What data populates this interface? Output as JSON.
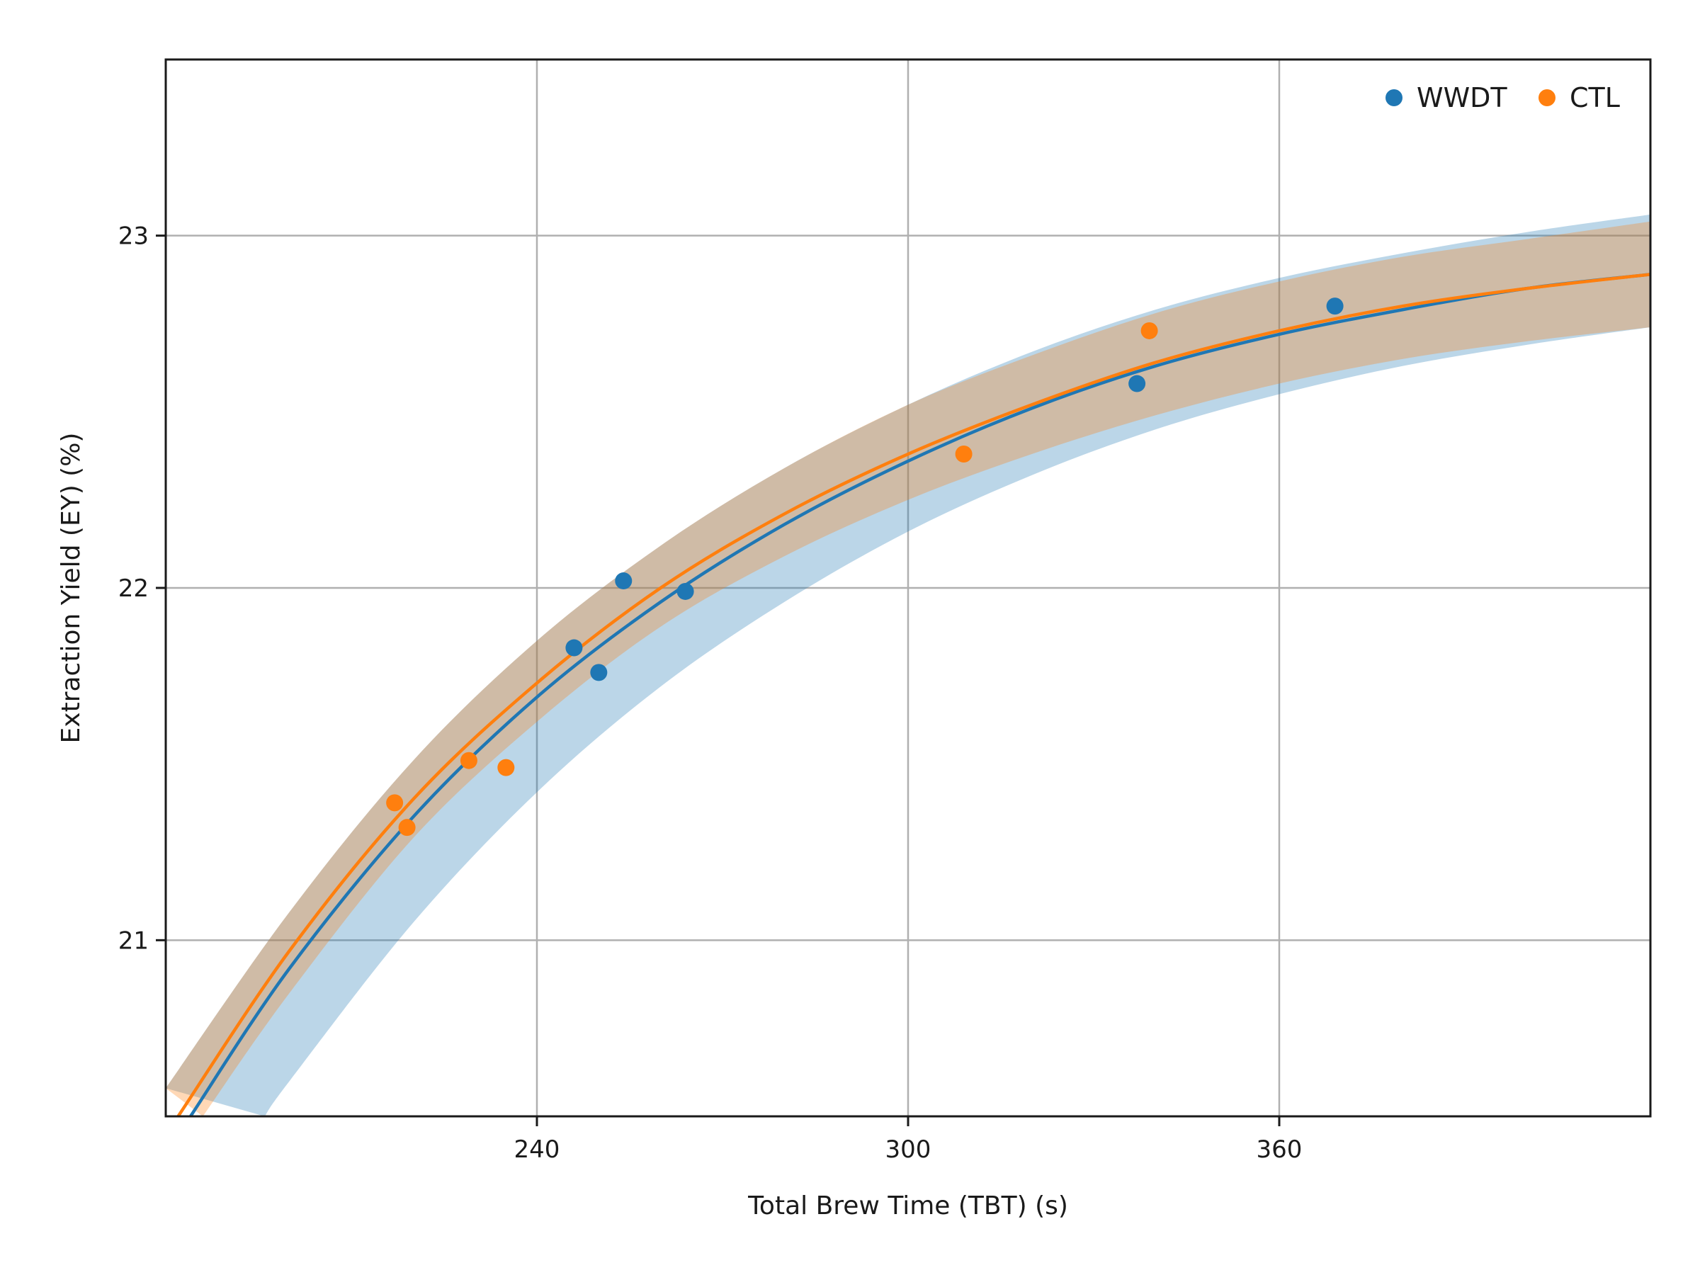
{
  "chart_data": {
    "type": "scatter",
    "title": "",
    "xlabel": "Total Brew Time (TBT) (s)",
    "ylabel": "Extraction Yield (EY) (%)",
    "xlim": [
      180,
      420
    ],
    "ylim": [
      20.5,
      23.5
    ],
    "xticks": [
      240,
      300,
      360
    ],
    "yticks": [
      21,
      22,
      23
    ],
    "grid": true,
    "legend_position": "top-right",
    "series": [
      {
        "name": "WWDT",
        "color": "#1f77b4",
        "points": [
          [
            246,
            21.83
          ],
          [
            250,
            21.76
          ],
          [
            254,
            22.02
          ],
          [
            264,
            21.99
          ],
          [
            337,
            22.58
          ],
          [
            369,
            22.8
          ]
        ],
        "fit_curve": [
          [
            184,
            20.5
          ],
          [
            200,
            20.92
          ],
          [
            220,
            21.35
          ],
          [
            240,
            21.69
          ],
          [
            260,
            21.96
          ],
          [
            280,
            22.18
          ],
          [
            300,
            22.36
          ],
          [
            320,
            22.51
          ],
          [
            340,
            22.63
          ],
          [
            360,
            22.72
          ],
          [
            380,
            22.79
          ],
          [
            400,
            22.85
          ],
          [
            420,
            22.89
          ]
        ],
        "band_upper": [
          [
            180,
            20.58
          ],
          [
            200,
            21.08
          ],
          [
            220,
            21.51
          ],
          [
            240,
            21.85
          ],
          [
            260,
            22.12
          ],
          [
            280,
            22.34
          ],
          [
            300,
            22.52
          ],
          [
            320,
            22.67
          ],
          [
            340,
            22.79
          ],
          [
            360,
            22.88
          ],
          [
            380,
            22.95
          ],
          [
            400,
            23.01
          ],
          [
            420,
            23.06
          ]
        ],
        "band_lower": [
          [
            196,
            20.5
          ],
          [
            200,
            20.6
          ],
          [
            220,
            21.05
          ],
          [
            240,
            21.42
          ],
          [
            260,
            21.72
          ],
          [
            280,
            21.96
          ],
          [
            300,
            22.16
          ],
          [
            320,
            22.32
          ],
          [
            340,
            22.45
          ],
          [
            360,
            22.55
          ],
          [
            380,
            22.63
          ],
          [
            400,
            22.69
          ],
          [
            420,
            22.74
          ]
        ]
      },
      {
        "name": "CTL",
        "color": "#ff7f0e",
        "points": [
          [
            217,
            21.39
          ],
          [
            219,
            21.32
          ],
          [
            229,
            21.51
          ],
          [
            235,
            21.49
          ],
          [
            309,
            22.38
          ],
          [
            339,
            22.73
          ]
        ],
        "fit_curve": [
          [
            182,
            20.5
          ],
          [
            200,
            20.97
          ],
          [
            220,
            21.4
          ],
          [
            240,
            21.73
          ],
          [
            260,
            22.0
          ],
          [
            280,
            22.21
          ],
          [
            300,
            22.38
          ],
          [
            320,
            22.52
          ],
          [
            340,
            22.64
          ],
          [
            360,
            22.73
          ],
          [
            380,
            22.8
          ],
          [
            400,
            22.85
          ],
          [
            420,
            22.89
          ]
        ],
        "band_upper": [
          [
            180,
            20.58
          ],
          [
            200,
            21.08
          ],
          [
            220,
            21.51
          ],
          [
            240,
            21.85
          ],
          [
            260,
            22.12
          ],
          [
            280,
            22.34
          ],
          [
            300,
            22.52
          ],
          [
            320,
            22.66
          ],
          [
            340,
            22.78
          ],
          [
            360,
            22.87
          ],
          [
            380,
            22.94
          ],
          [
            400,
            22.99
          ],
          [
            420,
            23.04
          ]
        ],
        "band_lower": [
          [
            186,
            20.5
          ],
          [
            200,
            20.85
          ],
          [
            220,
            21.29
          ],
          [
            240,
            21.62
          ],
          [
            260,
            21.89
          ],
          [
            280,
            22.09
          ],
          [
            300,
            22.25
          ],
          [
            320,
            22.38
          ],
          [
            340,
            22.49
          ],
          [
            360,
            22.58
          ],
          [
            380,
            22.65
          ],
          [
            400,
            22.7
          ],
          [
            420,
            22.74
          ]
        ]
      }
    ]
  }
}
